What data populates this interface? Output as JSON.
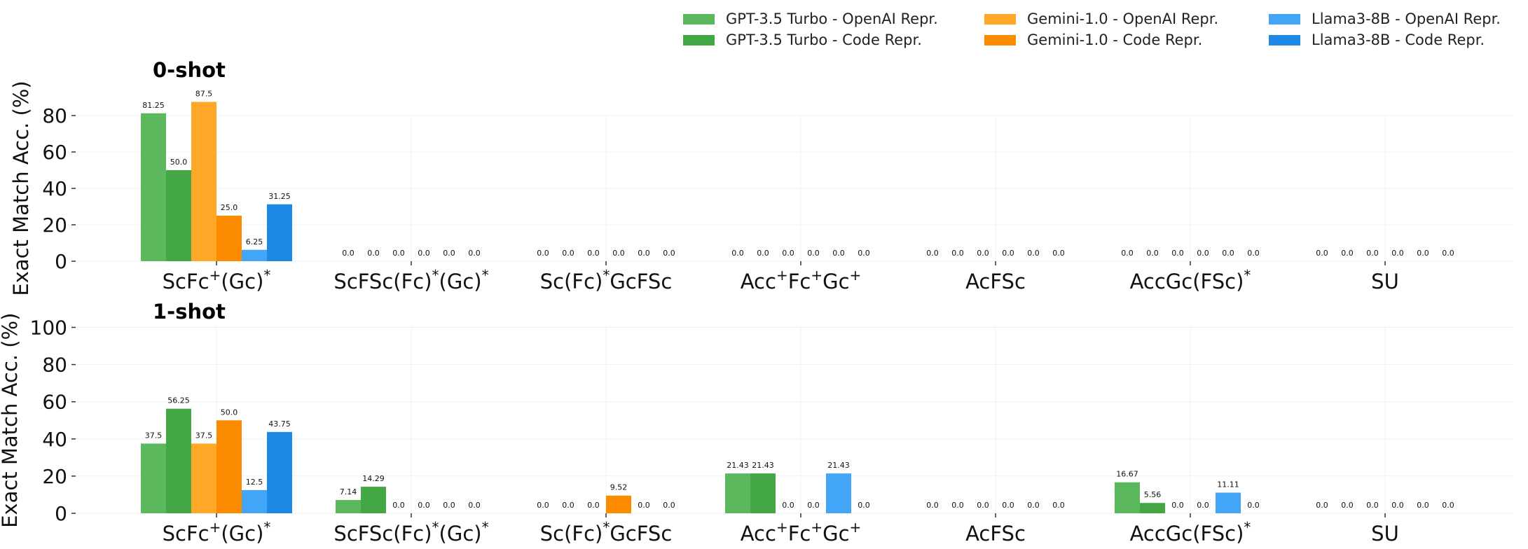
{
  "legend": {
    "entries": [
      {
        "label": "GPT-3.5 Turbo - OpenAI Repr.",
        "color": "#5cb85c"
      },
      {
        "label": "GPT-3.5 Turbo - Code Repr.",
        "color": "#43a843"
      },
      {
        "label": "Gemini-1.0 - OpenAI Repr.",
        "color": "#ffa726"
      },
      {
        "label": "Gemini-1.0 - Code Repr.",
        "color": "#fb8c00"
      },
      {
        "label": "Llama3-8B - OpenAI Repr.",
        "color": "#42a5f5"
      },
      {
        "label": "Llama3-8B - Code Repr.",
        "color": "#1e88e5"
      }
    ]
  },
  "chart_data": [
    {
      "type": "bar",
      "title": "0-shot",
      "ylabel": "Exact Match Acc. (%)",
      "ylim": [
        0,
        88
      ],
      "yticks": [
        "0",
        "20",
        "40",
        "60",
        "80"
      ],
      "categories": [
        {
          "base": "ScFc",
          "sup": "+",
          "tail": "(Gc)",
          "tail_sup": "*"
        },
        {
          "base": "ScFSc(Fc)",
          "sup": "*",
          "tail": "(Gc)",
          "tail_sup": "*"
        },
        {
          "base": "Sc(Fc)",
          "sup": "*",
          "tail": "GcFSc",
          "tail_sup": ""
        },
        {
          "base": "Acc",
          "sup": "+",
          "tail": "Fc",
          "tail_sup": "+",
          "tail2": "Gc",
          "tail2_sup": "+"
        },
        {
          "base": "AcFSc",
          "sup": "",
          "tail": "",
          "tail_sup": ""
        },
        {
          "base": "AccGc(FSc)",
          "sup": "*",
          "tail": "",
          "tail_sup": ""
        },
        {
          "base": "SU",
          "sup": "",
          "tail": "",
          "tail_sup": ""
        }
      ],
      "series": [
        {
          "name": "GPT-3.5 Turbo - OpenAI Repr.",
          "values": [
            81.25,
            0.0,
            0.0,
            0.0,
            0.0,
            0.0,
            0.0
          ],
          "labels": [
            "81.25",
            "0.0",
            "0.0",
            "0.0",
            "0.0",
            "0.0",
            "0.0"
          ]
        },
        {
          "name": "GPT-3.5 Turbo - Code Repr.",
          "values": [
            50.0,
            0.0,
            0.0,
            0.0,
            0.0,
            0.0,
            0.0
          ],
          "labels": [
            "50.0",
            "0.0",
            "0.0",
            "0.0",
            "0.0",
            "0.0",
            "0.0"
          ]
        },
        {
          "name": "Gemini-1.0 - OpenAI Repr.",
          "values": [
            87.5,
            0.0,
            0.0,
            0.0,
            0.0,
            0.0,
            0.0
          ],
          "labels": [
            "87.5",
            "0.0",
            "0.0",
            "0.0",
            "0.0",
            "0.0",
            "0.0"
          ]
        },
        {
          "name": "Gemini-1.0 - Code Repr.",
          "values": [
            25.0,
            0.0,
            0.0,
            0.0,
            0.0,
            0.0,
            0.0
          ],
          "labels": [
            "25.0",
            "0.0",
            "0.0",
            "0.0",
            "0.0",
            "0.0",
            "0.0"
          ]
        },
        {
          "name": "Llama3-8B - OpenAI Repr.",
          "values": [
            6.25,
            0.0,
            0.0,
            0.0,
            0.0,
            0.0,
            0.0
          ],
          "labels": [
            "6.25",
            "0.0",
            "0.0",
            "0.0",
            "0.0",
            "0.0",
            "0.0"
          ]
        },
        {
          "name": "Llama3-8B - Code Repr.",
          "values": [
            31.25,
            0.0,
            0.0,
            0.0,
            0.0,
            0.0,
            0.0
          ],
          "labels": [
            "31.25",
            "0.0",
            "0.0",
            "0.0",
            "0.0",
            "0.0",
            "0.0"
          ]
        }
      ],
      "grid": true
    },
    {
      "type": "bar",
      "title": "1-shot",
      "ylabel": "Exact Match Acc. (%)",
      "ylim": [
        0,
        100
      ],
      "yticks": [
        "0",
        "20",
        "40",
        "60",
        "80",
        "100"
      ],
      "categories": [
        {
          "base": "ScFc",
          "sup": "+",
          "tail": "(Gc)",
          "tail_sup": "*"
        },
        {
          "base": "ScFSc(Fc)",
          "sup": "*",
          "tail": "(Gc)",
          "tail_sup": "*"
        },
        {
          "base": "Sc(Fc)",
          "sup": "*",
          "tail": "GcFSc",
          "tail_sup": ""
        },
        {
          "base": "Acc",
          "sup": "+",
          "tail": "Fc",
          "tail_sup": "+",
          "tail2": "Gc",
          "tail2_sup": "+"
        },
        {
          "base": "AcFSc",
          "sup": "",
          "tail": "",
          "tail_sup": ""
        },
        {
          "base": "AccGc(FSc)",
          "sup": "*",
          "tail": "",
          "tail_sup": ""
        },
        {
          "base": "SU",
          "sup": "",
          "tail": "",
          "tail_sup": ""
        }
      ],
      "series": [
        {
          "name": "GPT-3.5 Turbo - OpenAI Repr.",
          "values": [
            37.5,
            7.14,
            0.0,
            21.43,
            0.0,
            16.67,
            0.0
          ],
          "labels": [
            "37.5",
            "7.14",
            "0.0",
            "21.43",
            "0.0",
            "16.67",
            "0.0"
          ]
        },
        {
          "name": "GPT-3.5 Turbo - Code Repr.",
          "values": [
            56.25,
            14.29,
            0.0,
            21.43,
            0.0,
            5.56,
            0.0
          ],
          "labels": [
            "56.25",
            "14.29",
            "0.0",
            "21.43",
            "0.0",
            "5.56",
            "0.0"
          ]
        },
        {
          "name": "Gemini-1.0 - OpenAI Repr.",
          "values": [
            37.5,
            0.0,
            0.0,
            0.0,
            0.0,
            0.0,
            0.0
          ],
          "labels": [
            "37.5",
            "0.0",
            "0.0",
            "0.0",
            "0.0",
            "0.0",
            "0.0"
          ]
        },
        {
          "name": "Gemini-1.0 - Code Repr.",
          "values": [
            50.0,
            0.0,
            9.52,
            0.0,
            0.0,
            0.0,
            0.0
          ],
          "labels": [
            "50.0",
            "0.0",
            "9.52",
            "0.0",
            "0.0",
            "0.0",
            "0.0"
          ]
        },
        {
          "name": "Llama3-8B - OpenAI Repr.",
          "values": [
            12.5,
            0.0,
            0.0,
            21.43,
            0.0,
            11.11,
            0.0
          ],
          "labels": [
            "12.5",
            "0.0",
            "0.0",
            "21.43",
            "0.0",
            "11.11",
            "0.0"
          ]
        },
        {
          "name": "Llama3-8B - Code Repr.",
          "values": [
            43.75,
            0.0,
            0.0,
            0.0,
            0.0,
            0.0,
            0.0
          ],
          "labels": [
            "43.75",
            "0.0",
            "0.0",
            "0.0",
            "0.0",
            "0.0",
            "0.0"
          ]
        }
      ],
      "grid": true
    }
  ]
}
